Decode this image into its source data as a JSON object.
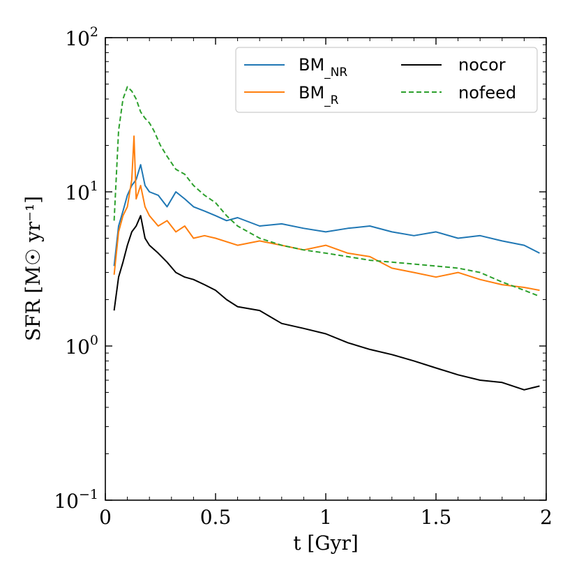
{
  "chart_data": {
    "type": "line",
    "xlabel": "t [Gyr]",
    "ylabel": "SFR [M☉ yr⁻¹]",
    "xlim": [
      0,
      2
    ],
    "ylim": [
      0.1,
      100
    ],
    "yscale": "log",
    "grid": false,
    "legend_position": "top-right",
    "x_ticks": [
      {
        "value": 0,
        "label": "0"
      },
      {
        "value": 0.5,
        "label": "0.5"
      },
      {
        "value": 1,
        "label": "1"
      },
      {
        "value": 1.5,
        "label": "1.5"
      },
      {
        "value": 2,
        "label": "2"
      }
    ],
    "y_ticks": [
      {
        "value": 0.1,
        "base": "10",
        "exp": "−1"
      },
      {
        "value": 1,
        "base": "10",
        "exp": "0"
      },
      {
        "value": 10,
        "base": "10",
        "exp": "1"
      },
      {
        "value": 100,
        "base": "10",
        "exp": "2"
      }
    ],
    "series": [
      {
        "name": "BM_NR",
        "legend_base": "BM",
        "legend_sub": "_NR",
        "color": "#1f77b4",
        "dash": "solid",
        "x": [
          0.04,
          0.06,
          0.08,
          0.1,
          0.12,
          0.14,
          0.16,
          0.18,
          0.2,
          0.24,
          0.28,
          0.32,
          0.36,
          0.4,
          0.45,
          0.5,
          0.55,
          0.6,
          0.7,
          0.8,
          0.9,
          1.0,
          1.1,
          1.2,
          1.3,
          1.4,
          1.5,
          1.6,
          1.7,
          1.8,
          1.9,
          1.97
        ],
        "y": [
          3.3,
          6.0,
          7.5,
          9.5,
          11.0,
          12.0,
          15.0,
          11.0,
          10.0,
          9.5,
          8.0,
          10.0,
          9.0,
          8.0,
          7.5,
          7.0,
          6.5,
          6.8,
          6.0,
          6.2,
          5.8,
          5.5,
          5.8,
          6.0,
          5.5,
          5.2,
          5.5,
          5.0,
          5.2,
          4.8,
          4.5,
          4.0
        ]
      },
      {
        "name": "BM_R",
        "legend_base": "BM",
        "legend_sub": "_R",
        "color": "#ff7f0e",
        "dash": "solid",
        "x": [
          0.04,
          0.06,
          0.08,
          0.1,
          0.12,
          0.13,
          0.14,
          0.16,
          0.18,
          0.2,
          0.24,
          0.28,
          0.32,
          0.36,
          0.4,
          0.45,
          0.5,
          0.6,
          0.7,
          0.8,
          0.9,
          1.0,
          1.1,
          1.2,
          1.3,
          1.4,
          1.5,
          1.6,
          1.7,
          1.8,
          1.9,
          1.97
        ],
        "y": [
          2.9,
          5.5,
          7.0,
          8.0,
          12.0,
          23.0,
          9.0,
          11.0,
          8.0,
          7.0,
          6.0,
          6.5,
          5.5,
          6.0,
          5.0,
          5.2,
          5.0,
          4.5,
          4.8,
          4.5,
          4.2,
          4.5,
          4.0,
          3.8,
          3.2,
          3.0,
          2.8,
          3.0,
          2.7,
          2.5,
          2.4,
          2.3
        ]
      },
      {
        "name": "nocor",
        "legend_base": "nocor",
        "legend_sub": "",
        "color": "#000000",
        "dash": "solid",
        "x": [
          0.04,
          0.06,
          0.08,
          0.1,
          0.12,
          0.14,
          0.16,
          0.18,
          0.2,
          0.24,
          0.28,
          0.32,
          0.36,
          0.4,
          0.45,
          0.5,
          0.55,
          0.6,
          0.7,
          0.8,
          0.9,
          1.0,
          1.1,
          1.2,
          1.3,
          1.4,
          1.5,
          1.6,
          1.7,
          1.8,
          1.9,
          1.97
        ],
        "y": [
          1.7,
          2.8,
          3.5,
          4.5,
          5.5,
          6.0,
          7.0,
          5.0,
          4.5,
          4.0,
          3.5,
          3.0,
          2.8,
          2.7,
          2.5,
          2.3,
          2.0,
          1.8,
          1.7,
          1.4,
          1.3,
          1.2,
          1.05,
          0.95,
          0.88,
          0.8,
          0.72,
          0.65,
          0.6,
          0.58,
          0.52,
          0.55
        ]
      },
      {
        "name": "nofeed",
        "legend_base": "nofeed",
        "legend_sub": "",
        "color": "#2ca02c",
        "dash": "dashed",
        "x": [
          0.04,
          0.06,
          0.08,
          0.1,
          0.12,
          0.14,
          0.16,
          0.18,
          0.2,
          0.22,
          0.25,
          0.28,
          0.32,
          0.36,
          0.4,
          0.45,
          0.5,
          0.55,
          0.6,
          0.7,
          0.8,
          0.9,
          1.0,
          1.1,
          1.2,
          1.3,
          1.4,
          1.5,
          1.6,
          1.7,
          1.8,
          1.9,
          1.97
        ],
        "y": [
          6.5,
          25.0,
          40.0,
          48.0,
          45.0,
          40.0,
          33.0,
          30.0,
          28.0,
          25.0,
          20.0,
          17.0,
          14.0,
          13.0,
          11.0,
          9.5,
          8.5,
          7.0,
          6.0,
          5.0,
          4.5,
          4.2,
          4.0,
          3.8,
          3.6,
          3.5,
          3.4,
          3.3,
          3.2,
          3.0,
          2.6,
          2.3,
          2.1
        ]
      }
    ]
  }
}
